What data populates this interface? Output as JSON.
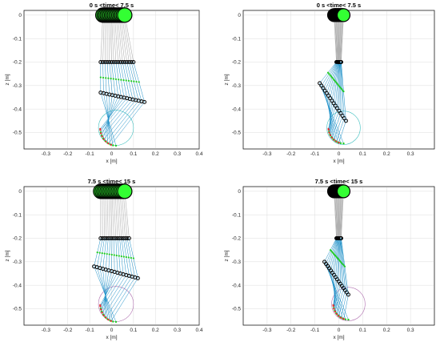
{
  "colors": {
    "joint_fill": "#000000",
    "hip_fill": "#33ff33",
    "link_line": "#1e90c8",
    "marker_green": "#22cc22",
    "marker_red": "#e03030",
    "circle_top": "#40c0c0",
    "circle_bottom": "#b070b0",
    "grid": "#dcdcdc",
    "axis": "#262626"
  },
  "chart_data": [
    {
      "type": "scatter",
      "title": "0 s <time< 7.5 s",
      "xlabel": "x [m]",
      "ylabel": "z [m]",
      "xlim": [
        -0.4,
        0.4
      ],
      "ylim": [
        -0.57,
        0.02
      ],
      "xticks": [
        "-0.3",
        "-0.2",
        "-0.1",
        "0",
        "0.1",
        "0.2",
        "0.3",
        "0.4"
      ],
      "yticks": [
        "0",
        "-0.1",
        "-0.2",
        "-0.3",
        "-0.4",
        "-0.5"
      ],
      "grid": true,
      "hip": {
        "z": 0.0,
        "x": [
          -0.04,
          0.06
        ]
      },
      "knee": {
        "z": -0.2,
        "x": [
          -0.05,
          0.1
        ]
      },
      "thigh_ends": {
        "z": [
          -0.33,
          -0.37
        ],
        "x": [
          -0.05,
          0.15
        ]
      },
      "foot_arc": {
        "center": [
          0.02,
          -0.48
        ],
        "radius": 0.08,
        "circle_color": "circle_top"
      }
    },
    {
      "type": "scatter",
      "title": "0 s <time< 7.5 s",
      "xlabel": "x [m]",
      "ylabel": "z [m]",
      "xlim": [
        -0.4,
        0.4
      ],
      "ylim": [
        -0.57,
        0.02
      ],
      "xticks": [
        "-0.3",
        "-0.2",
        "-0.1",
        "0",
        "0.1",
        "0.2",
        "0.3"
      ],
      "yticks": [
        "0",
        "-0.1",
        "-0.2",
        "-0.3",
        "-0.4",
        "-0.5"
      ],
      "grid": true,
      "hip": {
        "z": 0.0,
        "x": [
          -0.02,
          0.02
        ]
      },
      "knee": {
        "z": -0.2,
        "x": [
          -0.01,
          0.01
        ]
      },
      "thigh_ends": {
        "z": [
          -0.29,
          -0.45
        ],
        "x": [
          -0.08,
          0.03
        ]
      },
      "foot_arc": {
        "center": [
          0.02,
          -0.48
        ],
        "radius": 0.07,
        "circle_color": "circle_top"
      }
    },
    {
      "type": "scatter",
      "title": "7.5 s <time< 15 s",
      "xlabel": "x [m]",
      "ylabel": "z [m]",
      "xlim": [
        -0.4,
        0.4
      ],
      "ylim": [
        -0.57,
        0.02
      ],
      "xticks": [
        "-0.3",
        "-0.2",
        "-0.1",
        "0",
        "0.1",
        "0.2",
        "0.3",
        "0.4"
      ],
      "yticks": [
        "0",
        "-0.1",
        "-0.2",
        "-0.3",
        "-0.4",
        "-0.5"
      ],
      "grid": true,
      "hip": {
        "z": 0.0,
        "x": [
          -0.05,
          0.06
        ]
      },
      "knee": {
        "z": -0.2,
        "x": [
          -0.05,
          0.08
        ]
      },
      "thigh_ends": {
        "z": [
          -0.32,
          -0.37
        ],
        "x": [
          -0.08,
          0.12
        ]
      },
      "foot_arc": {
        "center": [
          0.02,
          -0.48
        ],
        "radius": 0.08,
        "circle_color": "circle_bottom"
      }
    },
    {
      "type": "scatter",
      "title": "7.5 s <time< 15 s",
      "xlabel": "x [m]",
      "ylabel": "z [m]",
      "xlim": [
        -0.4,
        0.4
      ],
      "ylim": [
        -0.57,
        0.02
      ],
      "xticks": [
        "-0.3",
        "-0.2",
        "-0.1",
        "0",
        "0.1",
        "0.2",
        "0.3"
      ],
      "yticks": [
        "0",
        "-0.1",
        "-0.2",
        "-0.3",
        "-0.4",
        "-0.5"
      ],
      "grid": true,
      "hip": {
        "z": 0.0,
        "x": [
          -0.02,
          0.02
        ]
      },
      "knee": {
        "z": -0.2,
        "x": [
          -0.01,
          0.01
        ]
      },
      "thigh_ends": {
        "z": [
          -0.3,
          -0.44
        ],
        "x": [
          -0.06,
          0.04
        ]
      },
      "foot_arc": {
        "center": [
          0.04,
          -0.48
        ],
        "radius": 0.07,
        "circle_color": "circle_bottom"
      }
    }
  ]
}
